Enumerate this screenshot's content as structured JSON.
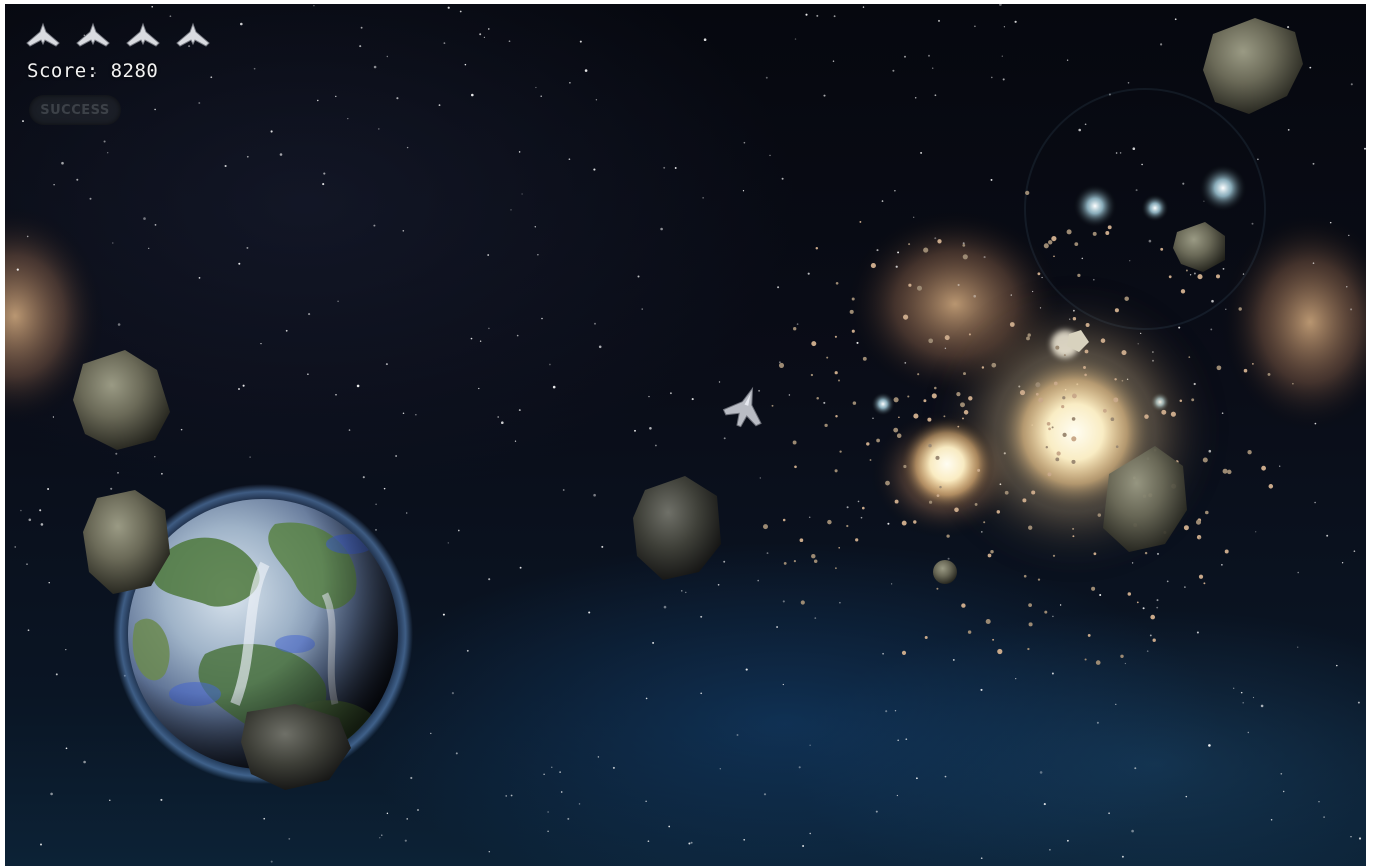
{
  "hud": {
    "lives": {
      "count": 4,
      "icon": "ship-life-icon"
    },
    "score_text": "Score: 8280",
    "status_text": "SUCCESS"
  },
  "scene": {
    "planet": "earth-like-planet",
    "player_ship": "spaceship-icon",
    "objects": [
      "asteroid",
      "explosion",
      "nebula",
      "stars",
      "debris",
      "lens-flare"
    ],
    "colors": {
      "space": "#070a12",
      "nebula_blue": "#1a5a8a",
      "explosion_core": "#fffbe6",
      "glow": "#f4c28a"
    }
  }
}
